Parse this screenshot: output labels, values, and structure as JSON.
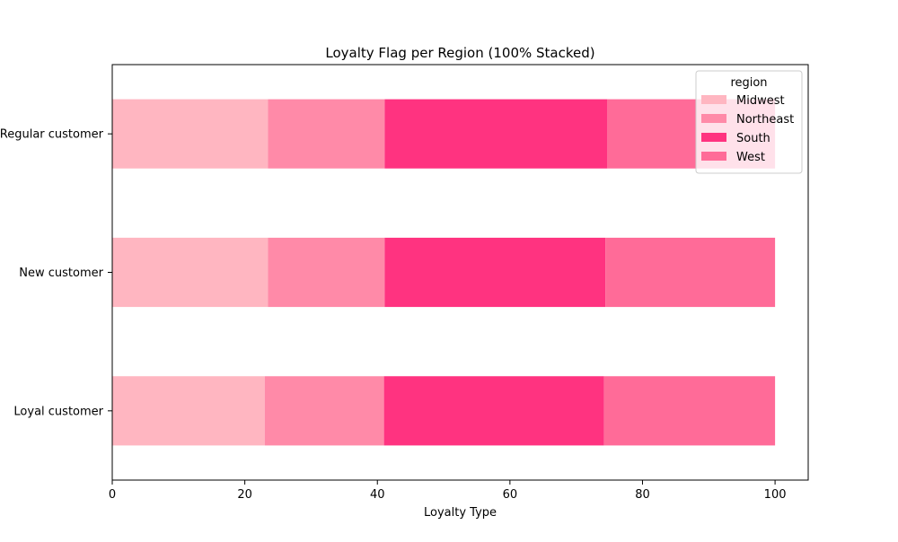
{
  "chart_data": {
    "type": "bar",
    "orientation": "horizontal",
    "stacked": true,
    "title": "Loyalty Flag per Region (100% Stacked)",
    "xlabel": "Loyalty Type",
    "ylabel": "",
    "xlim": [
      0,
      105
    ],
    "xticks": [
      "0",
      "20",
      "40",
      "60",
      "80",
      "100"
    ],
    "categories": [
      "Loyal customer",
      "New customer",
      "Regular customer"
    ],
    "category_labels": [
      "Loyal customer",
      "New customer",
      "Regular customer"
    ],
    "legend_title": "region",
    "legend_position": "top-right",
    "series": [
      {
        "name": "Midwest",
        "color": "#FFB6C1",
        "values": [
          23.0,
          23.5,
          23.5
        ]
      },
      {
        "name": "Northeast",
        "color": "#FF8AA8",
        "values": [
          18.0,
          17.6,
          17.6
        ]
      },
      {
        "name": "South",
        "color": "#FF3380",
        "values": [
          33.2,
          33.3,
          33.6
        ]
      },
      {
        "name": "West",
        "color": "#FF6B98",
        "values": [
          25.8,
          25.6,
          25.3
        ]
      }
    ]
  }
}
